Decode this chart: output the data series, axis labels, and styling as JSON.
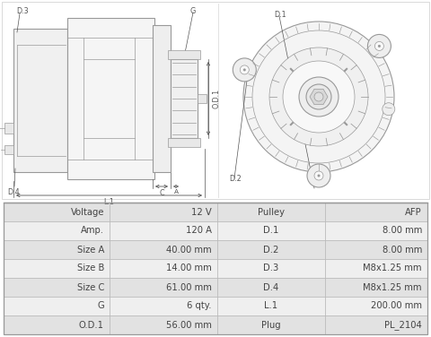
{
  "bg_color": "#ffffff",
  "row_data": [
    [
      "Voltage",
      "12 V",
      "Pulley",
      "AFP"
    ],
    [
      "Amp.",
      "120 A",
      "D.1",
      "8.00 mm"
    ],
    [
      "Size A",
      "40.00 mm",
      "D.2",
      "8.00 mm"
    ],
    [
      "Size B",
      "14.00 mm",
      "D.3",
      "M8x1.25 mm"
    ],
    [
      "Size C",
      "61.00 mm",
      "D.4",
      "M8x1.25 mm"
    ],
    [
      "G",
      "6 qty.",
      "L.1",
      "200.00 mm"
    ],
    [
      "O.D.1",
      "56.00 mm",
      "Plug",
      "PL_2104"
    ]
  ],
  "row_colors": [
    "#e2e2e2",
    "#efefef"
  ],
  "text_color": "#444444",
  "line_color": "#bbbbbb",
  "border_color": "#999999",
  "cell_fontsize": 7.2,
  "drawing_line_color": "#999999",
  "label_color": "#555555",
  "label_fontsize": 5.8
}
